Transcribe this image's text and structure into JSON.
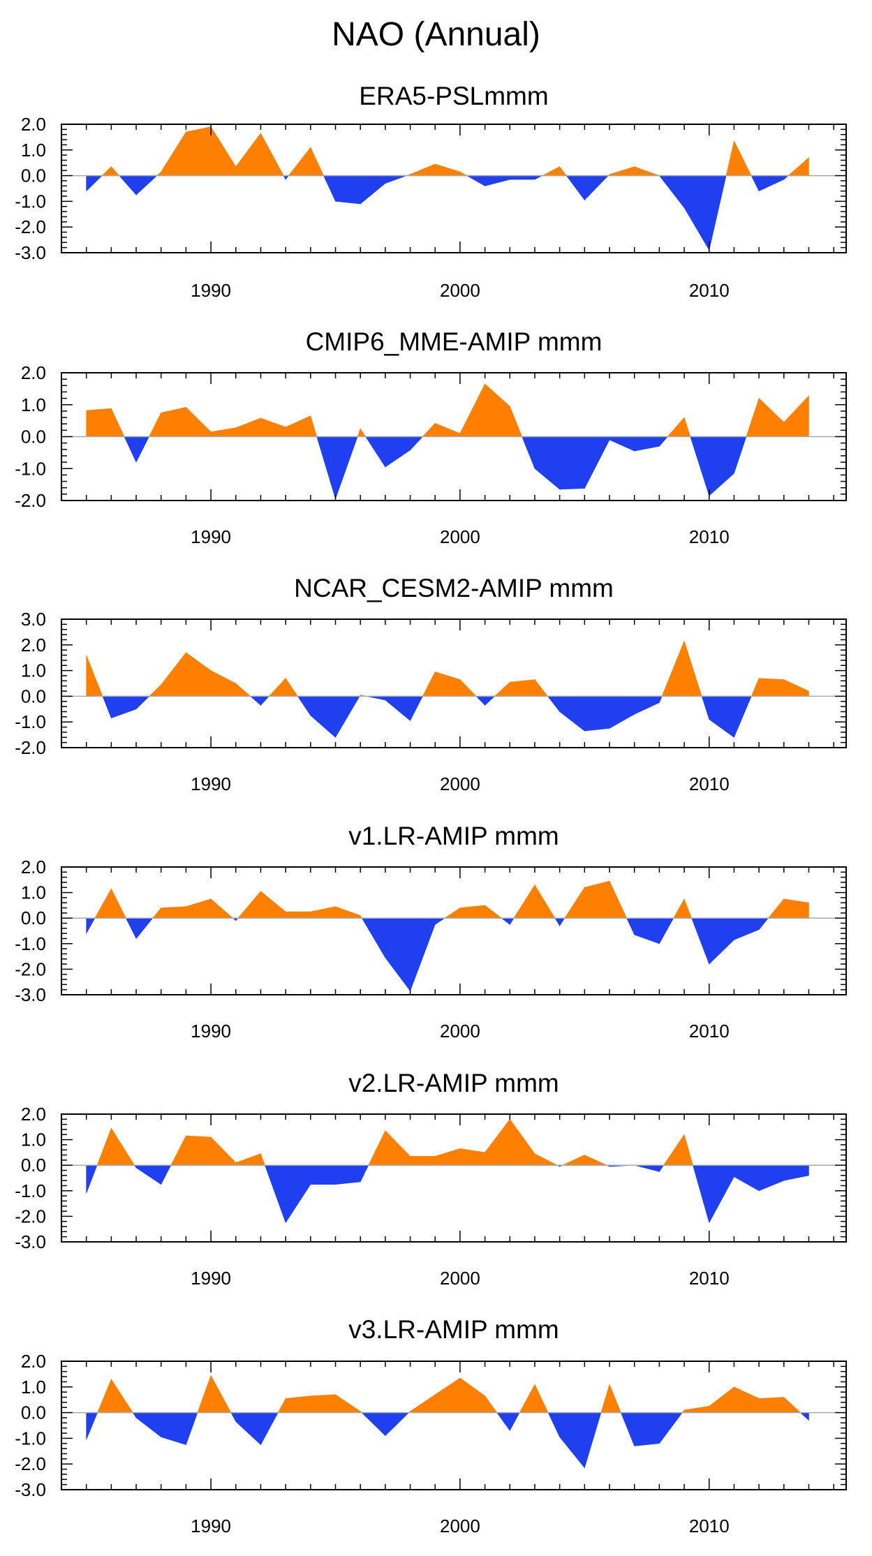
{
  "title": "NAO (Annual)",
  "colors": {
    "positive": "#ff8000",
    "negative": "#2040f0",
    "axis": "#000000",
    "zero_line": "#a8a8a8"
  },
  "chart_data": [
    {
      "type": "area",
      "title": "ERA5-PSLmmm",
      "x": [
        1985,
        1986,
        1987,
        1988,
        1989,
        1990,
        1991,
        1992,
        1993,
        1994,
        1995,
        1996,
        1997,
        1998,
        1999,
        2000,
        2001,
        2002,
        2003,
        2004,
        2005,
        2006,
        2007,
        2008,
        2009,
        2010,
        2011,
        2012,
        2013,
        2014
      ],
      "values": [
        -0.6,
        0.35,
        -0.75,
        0.15,
        1.7,
        1.9,
        0.35,
        1.65,
        -0.15,
        1.1,
        -1.0,
        -1.1,
        -0.3,
        0.05,
        0.45,
        0.15,
        -0.4,
        -0.15,
        -0.15,
        0.35,
        -0.95,
        0.05,
        0.35,
        0.0,
        -1.25,
        -2.9,
        1.35,
        -0.6,
        -0.15,
        0.7
      ],
      "ylim": [
        -3.0,
        2.0
      ],
      "yticks": [
        "2.0",
        "1.0",
        "0.0",
        "-1.0",
        "-2.0",
        "-3.0"
      ],
      "xticks": [
        "1990",
        "2000",
        "2010"
      ],
      "grid": false
    },
    {
      "type": "area",
      "title": "CMIP6_MME-AMIP  mmm",
      "x": [
        1985,
        1986,
        1987,
        1988,
        1989,
        1990,
        1991,
        1992,
        1993,
        1994,
        1995,
        1996,
        1997,
        1998,
        1999,
        2000,
        2001,
        2002,
        2003,
        2004,
        2005,
        2006,
        2007,
        2008,
        2009,
        2010,
        2011,
        2012,
        2013,
        2014
      ],
      "values": [
        0.82,
        0.88,
        -0.8,
        0.75,
        0.92,
        0.15,
        0.28,
        0.58,
        0.3,
        0.65,
        -1.95,
        0.25,
        -0.95,
        -0.42,
        0.42,
        0.1,
        1.65,
        0.95,
        -1.0,
        -1.65,
        -1.62,
        -0.1,
        -0.45,
        -0.3,
        0.6,
        -1.85,
        -1.15,
        1.2,
        0.45,
        1.28
      ],
      "ylim": [
        -2.0,
        2.0
      ],
      "yticks": [
        "2.0",
        "1.0",
        "0.0",
        "-1.0",
        "-2.0"
      ],
      "xticks": [
        "1990",
        "2000",
        "2010"
      ],
      "grid": false
    },
    {
      "type": "area",
      "title": "NCAR_CESM2-AMIP  mmm",
      "x": [
        1985,
        1986,
        1987,
        1988,
        1989,
        1990,
        1991,
        1992,
        1993,
        1994,
        1995,
        1996,
        1997,
        1998,
        1999,
        2000,
        2001,
        2002,
        2003,
        2004,
        2005,
        2006,
        2007,
        2008,
        2009,
        2010,
        2011,
        2012,
        2013,
        2014
      ],
      "values": [
        1.6,
        -0.85,
        -0.5,
        0.45,
        1.7,
        1.0,
        0.5,
        -0.35,
        0.7,
        -0.75,
        -1.6,
        0.05,
        -0.15,
        -0.95,
        0.95,
        0.65,
        -0.35,
        0.55,
        0.65,
        -0.6,
        -1.35,
        -1.25,
        -0.7,
        -0.25,
        2.15,
        -0.9,
        -1.6,
        0.7,
        0.65,
        0.2
      ],
      "ylim": [
        -2.0,
        3.0
      ],
      "yticks": [
        "3.0",
        "2.0",
        "1.0",
        "0.0",
        "-1.0",
        "-2.0"
      ],
      "xticks": [
        "1990",
        "2000",
        "2010"
      ],
      "grid": false
    },
    {
      "type": "area",
      "title": "v1.LR-AMIP  mmm",
      "x": [
        1985,
        1986,
        1987,
        1988,
        1989,
        1990,
        1991,
        1992,
        1993,
        1994,
        1995,
        1996,
        1997,
        1998,
        1999,
        2000,
        2001,
        2002,
        2003,
        2004,
        2005,
        2006,
        2007,
        2008,
        2009,
        2010,
        2011,
        2012,
        2013,
        2014
      ],
      "values": [
        -0.6,
        1.15,
        -0.8,
        0.4,
        0.45,
        0.75,
        -0.1,
        1.05,
        0.25,
        0.25,
        0.45,
        0.1,
        -1.55,
        -2.85,
        -0.25,
        0.4,
        0.5,
        -0.25,
        1.3,
        -0.3,
        1.2,
        1.45,
        -0.65,
        -1.0,
        0.75,
        -1.8,
        -0.85,
        -0.45,
        0.75,
        0.6
      ],
      "ylim": [
        -3.0,
        2.0
      ],
      "yticks": [
        "2.0",
        "1.0",
        "0.0",
        "-1.0",
        "-2.0",
        "-3.0"
      ],
      "xticks": [
        "1990",
        "2000",
        "2010"
      ],
      "grid": false
    },
    {
      "type": "area",
      "title": "v2.LR-AMIP  mmm",
      "x": [
        1985,
        1986,
        1987,
        1988,
        1989,
        1990,
        1991,
        1992,
        1993,
        1994,
        1995,
        1996,
        1997,
        1998,
        1999,
        2000,
        2001,
        2002,
        2003,
        2004,
        2005,
        2006,
        2007,
        2008,
        2009,
        2010,
        2011,
        2012,
        2013,
        2014
      ],
      "values": [
        -1.1,
        1.45,
        -0.1,
        -0.75,
        1.15,
        1.1,
        0.1,
        0.45,
        -2.25,
        -0.75,
        -0.75,
        -0.65,
        1.35,
        0.35,
        0.35,
        0.65,
        0.5,
        1.8,
        0.45,
        -0.05,
        0.4,
        -0.05,
        0.0,
        -0.25,
        1.2,
        -2.25,
        -0.45,
        -1.0,
        -0.6,
        -0.4
      ],
      "ylim": [
        -3.0,
        2.0
      ],
      "yticks": [
        "2.0",
        "1.0",
        "0.0",
        "-1.0",
        "-2.0",
        "-3.0"
      ],
      "xticks": [
        "1990",
        "2000",
        "2010"
      ],
      "grid": false
    },
    {
      "type": "area",
      "title": "v3.LR-AMIP  mmm",
      "x": [
        1985,
        1986,
        1987,
        1988,
        1989,
        1990,
        1991,
        1992,
        1993,
        1994,
        1995,
        1996,
        1997,
        1998,
        1999,
        2000,
        2001,
        2002,
        2003,
        2004,
        2005,
        2006,
        2007,
        2008,
        2009,
        2010,
        2011,
        2012,
        2013,
        2014
      ],
      "values": [
        -1.05,
        1.3,
        -0.2,
        -0.95,
        -1.25,
        1.45,
        -0.35,
        -1.25,
        0.55,
        0.65,
        0.7,
        0.05,
        -0.9,
        0.05,
        0.7,
        1.35,
        0.65,
        -0.7,
        1.1,
        -0.95,
        -2.15,
        1.1,
        -1.3,
        -1.2,
        0.1,
        0.25,
        1.0,
        0.55,
        0.6,
        -0.3
      ],
      "ylim": [
        -3.0,
        2.0
      ],
      "yticks": [
        "2.0",
        "1.0",
        "0.0",
        "-1.0",
        "-2.0",
        "-3.0"
      ],
      "xticks": [
        "1990",
        "2000",
        "2010"
      ],
      "grid": false
    }
  ]
}
